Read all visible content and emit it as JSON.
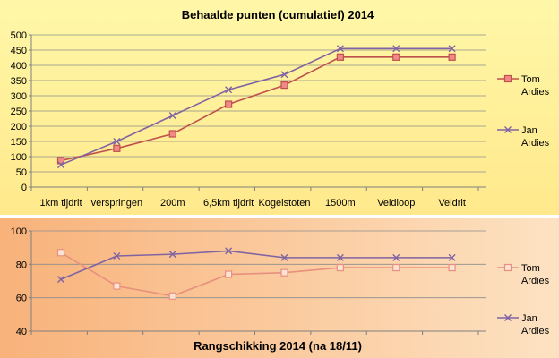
{
  "colors": {
    "panel1_bg_top": "#fff7a8",
    "panel1_bg_bottom": "#ffe98c",
    "panel2_bg_left": "#f8b27a",
    "panel2_bg_right": "#fde2c2",
    "tom_chart1": "#c0504d",
    "jan_chart1": "#8064a2",
    "tom_chart2": "#e8907e",
    "jan_chart2": "#8064a2",
    "grid": "#8c8c8c",
    "axis": "#7f7f7f"
  },
  "chart_data": [
    {
      "type": "line",
      "title": "Behaalde punten (cumulatief) 2014",
      "categories": [
        "1km tijdrit",
        "verspringen",
        "200m",
        "6,5km tijdrit",
        "Kogelstoten",
        "1500m",
        "Veldloop",
        "Veldrit"
      ],
      "ylim": [
        0,
        500
      ],
      "yticks": [
        "0",
        "50",
        "100",
        "150",
        "200",
        "250",
        "300",
        "350",
        "400",
        "450",
        "500"
      ],
      "series": [
        {
          "name": "Tom Ardies",
          "name_lines": [
            "Tom",
            "Ardies"
          ],
          "marker": "square",
          "values": [
            87,
            127,
            175,
            272,
            335,
            427,
            427,
            427
          ]
        },
        {
          "name": "Jan Ardies",
          "name_lines": [
            "Jan",
            "Ardies"
          ],
          "marker": "x",
          "values": [
            73,
            150,
            235,
            320,
            370,
            455,
            455,
            455
          ]
        }
      ],
      "grid": true,
      "legend": "right"
    },
    {
      "type": "line",
      "title": "Rangschikking 2014 (na 18/11)",
      "categories": [
        "",
        "",
        "",
        "",
        "",
        "",
        "",
        ""
      ],
      "ylim": [
        40,
        100
      ],
      "yticks": [
        "40",
        "60",
        "80",
        "100"
      ],
      "series": [
        {
          "name": "Tom Ardies",
          "name_lines": [
            "Tom",
            "Ardies"
          ],
          "marker": "square-open",
          "values": [
            87,
            67,
            61,
            74,
            75,
            78,
            78,
            78
          ]
        },
        {
          "name": "Jan Ardies",
          "name_lines": [
            "Jan",
            "Ardies"
          ],
          "marker": "x",
          "values": [
            71,
            85,
            86,
            88,
            84,
            84,
            84,
            84
          ]
        }
      ],
      "grid": true,
      "legend": "right"
    }
  ]
}
